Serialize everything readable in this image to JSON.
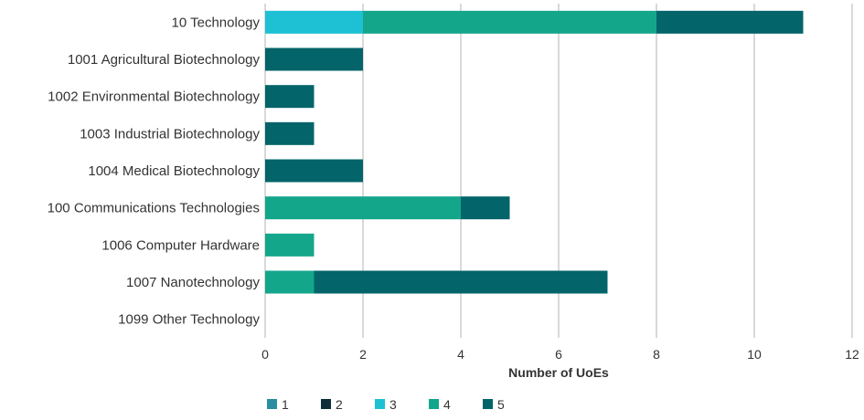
{
  "chart_data": {
    "type": "bar",
    "orientation": "horizontal",
    "stacked": true,
    "categories": [
      "10 Technology",
      "1001 Agricultural Biotechnology",
      "1002 Environmental Biotechnology",
      "1003 Industrial Biotechnology",
      "1004 Medical Biotechnology",
      "100 Communications Technologies",
      "1006 Computer Hardware",
      "1007 Nanotechnology",
      "1099 Other Technology"
    ],
    "series": [
      {
        "name": "1",
        "color": "#2a8ea3",
        "values": [
          0,
          0,
          0,
          0,
          0,
          0,
          0,
          0,
          0
        ]
      },
      {
        "name": "2",
        "color": "#0d2d3a",
        "values": [
          0,
          0,
          0,
          0,
          0,
          0,
          0,
          0,
          0
        ]
      },
      {
        "name": "3",
        "color": "#1ec0d4",
        "values": [
          2,
          0,
          0,
          0,
          0,
          0,
          0,
          0,
          0
        ]
      },
      {
        "name": "4",
        "color": "#13a68b",
        "values": [
          6,
          0,
          0,
          0,
          0,
          4,
          1,
          1,
          0
        ]
      },
      {
        "name": "5",
        "color": "#03646a",
        "values": [
          3,
          2,
          1,
          1,
          2,
          1,
          0,
          6,
          0
        ]
      }
    ],
    "xlabel": "Number of UoEs",
    "xlim": [
      0,
      12
    ],
    "xticks": [
      0,
      2,
      4,
      6,
      8,
      10,
      12
    ],
    "grid": "vertical",
    "legend": "bottom"
  }
}
